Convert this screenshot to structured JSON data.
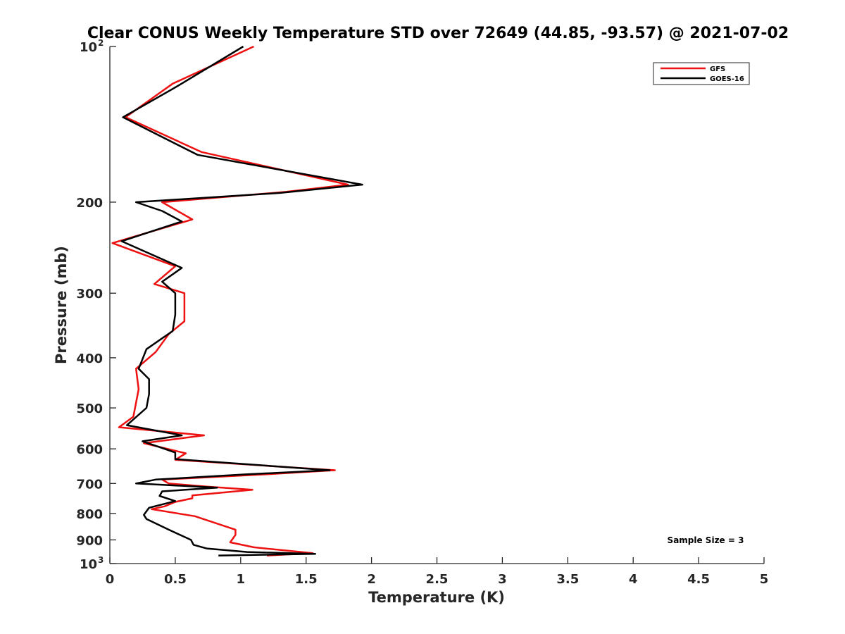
{
  "chart_data": {
    "type": "line",
    "title": "Clear CONUS Weekly Temperature STD over 72649 (44.85, -93.57) @ 2021-07-02",
    "xlabel": "Temperature (K)",
    "ylabel": "Pressure (mb)",
    "xlim": [
      0,
      5
    ],
    "ylim": [
      100,
      1000
    ],
    "y_scale": "log",
    "y_reversed": true,
    "grid": false,
    "x_ticks": [
      "0",
      "0.5",
      "1",
      "1.5",
      "2",
      "2.5",
      "3",
      "3.5",
      "4",
      "4.5",
      "5"
    ],
    "y_ticks": [
      {
        "value": 100,
        "label": "10",
        "sup": "2"
      },
      {
        "value": 200,
        "label": "200"
      },
      {
        "value": 300,
        "label": "300"
      },
      {
        "value": 400,
        "label": "400"
      },
      {
        "value": 500,
        "label": "500"
      },
      {
        "value": 600,
        "label": "600"
      },
      {
        "value": 700,
        "label": "700"
      },
      {
        "value": 800,
        "label": "800"
      },
      {
        "value": 900,
        "label": "900"
      },
      {
        "value": 1000,
        "label": "10",
        "sup": "3"
      }
    ],
    "legend_position": "top-right",
    "annotation": "Sample Size = 3",
    "series": [
      {
        "name": "GFS",
        "color": "#ee1111",
        "points": [
          [
            1.1,
            100
          ],
          [
            0.48,
            118
          ],
          [
            0.12,
            137
          ],
          [
            0.7,
            160
          ],
          [
            1.82,
            185
          ],
          [
            1.35,
            191
          ],
          [
            0.4,
            200
          ],
          [
            0.63,
            216
          ],
          [
            0.02,
            240
          ],
          [
            0.5,
            266
          ],
          [
            0.34,
            288
          ],
          [
            0.57,
            300
          ],
          [
            0.57,
            340
          ],
          [
            0.45,
            360
          ],
          [
            0.35,
            390
          ],
          [
            0.2,
            420
          ],
          [
            0.22,
            460
          ],
          [
            0.18,
            520
          ],
          [
            0.07,
            545
          ],
          [
            0.72,
            565
          ],
          [
            0.26,
            585
          ],
          [
            0.58,
            612
          ],
          [
            0.5,
            630
          ],
          [
            1.72,
            660
          ],
          [
            1.2,
            672
          ],
          [
            0.4,
            688
          ],
          [
            0.45,
            700
          ],
          [
            0.74,
            710
          ],
          [
            1.09,
            720
          ],
          [
            0.63,
            738
          ],
          [
            0.63,
            748
          ],
          [
            0.5,
            760
          ],
          [
            0.42,
            775
          ],
          [
            0.32,
            785
          ],
          [
            0.65,
            810
          ],
          [
            0.96,
            860
          ],
          [
            0.96,
            880
          ],
          [
            0.92,
            910
          ],
          [
            1.1,
            930
          ],
          [
            1.55,
            955
          ],
          [
            1.2,
            965
          ]
        ]
      },
      {
        "name": "GOES-16",
        "color": "#000000",
        "points": [
          [
            1.02,
            100
          ],
          [
            0.5,
            120
          ],
          [
            0.1,
            137
          ],
          [
            0.67,
            162
          ],
          [
            1.93,
            185
          ],
          [
            1.3,
            192
          ],
          [
            0.2,
            200
          ],
          [
            0.4,
            208
          ],
          [
            0.55,
            218
          ],
          [
            0.09,
            238
          ],
          [
            0.55,
            268
          ],
          [
            0.4,
            285
          ],
          [
            0.5,
            300
          ],
          [
            0.5,
            330
          ],
          [
            0.48,
            355
          ],
          [
            0.28,
            385
          ],
          [
            0.22,
            420
          ],
          [
            0.3,
            440
          ],
          [
            0.3,
            470
          ],
          [
            0.28,
            500
          ],
          [
            0.13,
            540
          ],
          [
            0.55,
            565
          ],
          [
            0.25,
            580
          ],
          [
            0.5,
            610
          ],
          [
            0.5,
            628
          ],
          [
            1.68,
            660
          ],
          [
            1.05,
            672
          ],
          [
            0.35,
            688
          ],
          [
            0.2,
            700
          ],
          [
            0.82,
            713
          ],
          [
            0.4,
            725
          ],
          [
            0.38,
            740
          ],
          [
            0.5,
            757
          ],
          [
            0.3,
            780
          ],
          [
            0.26,
            805
          ],
          [
            0.28,
            820
          ],
          [
            0.45,
            860
          ],
          [
            0.62,
            900
          ],
          [
            0.64,
            920
          ],
          [
            0.74,
            935
          ],
          [
            1.05,
            950
          ],
          [
            1.57,
            958
          ],
          [
            0.83,
            965
          ]
        ]
      }
    ]
  }
}
